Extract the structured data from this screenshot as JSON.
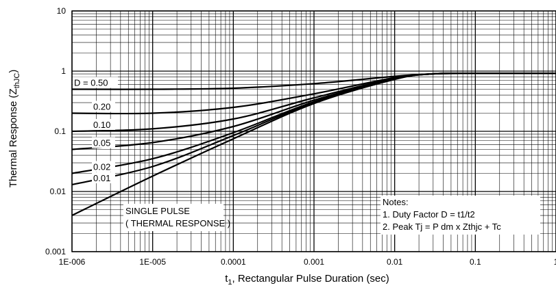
{
  "chart_data": {
    "type": "line",
    "title": "",
    "xlabel_main": "t",
    "xlabel_sub": "1",
    "xlabel_rest": ", Rectangular Pulse Duration (sec)",
    "ylabel_main": "Thermal Response (Z",
    "ylabel_sub": "thJC",
    "ylabel_end": ")",
    "x_scale": "log",
    "y_scale": "log",
    "xlim": [
      1e-06,
      1
    ],
    "ylim": [
      0.001,
      10
    ],
    "grid": true,
    "x_ticks": [
      {
        "value": 1e-06,
        "label": "1E-006"
      },
      {
        "value": 1e-05,
        "label": "1E-005"
      },
      {
        "value": 0.0001,
        "label": "0.0001"
      },
      {
        "value": 0.001,
        "label": "0.001"
      },
      {
        "value": 0.01,
        "label": "0.01"
      },
      {
        "value": 0.1,
        "label": "0.1"
      },
      {
        "value": 1,
        "label": "1"
      }
    ],
    "y_ticks": [
      {
        "value": 0.001,
        "label": "0.001"
      },
      {
        "value": 0.01,
        "label": "0.01"
      },
      {
        "value": 0.1,
        "label": "0.1"
      },
      {
        "value": 1,
        "label": "1"
      },
      {
        "value": 10,
        "label": "10"
      }
    ],
    "series": [
      {
        "name": "D = 0.50",
        "x": [
          1e-06,
          1e-05,
          0.0001,
          0.001,
          0.01,
          0.03,
          0.1,
          1
        ],
        "y": [
          0.5,
          0.5,
          0.52,
          0.62,
          0.82,
          0.9,
          0.92,
          0.92
        ]
      },
      {
        "name": "0.20",
        "x": [
          1e-06,
          1e-05,
          0.0001,
          0.001,
          0.01,
          0.03,
          0.1,
          1
        ],
        "y": [
          0.2,
          0.2,
          0.25,
          0.42,
          0.78,
          0.9,
          0.92,
          0.92
        ]
      },
      {
        "name": "0.10",
        "x": [
          1e-06,
          1e-05,
          0.0001,
          0.001,
          0.01,
          0.03,
          0.1,
          1
        ],
        "y": [
          0.1,
          0.11,
          0.16,
          0.36,
          0.76,
          0.9,
          0.92,
          0.92
        ]
      },
      {
        "name": "0.05",
        "x": [
          1e-06,
          1e-05,
          0.0001,
          0.001,
          0.01,
          0.03,
          0.1,
          1
        ],
        "y": [
          0.05,
          0.065,
          0.12,
          0.33,
          0.75,
          0.9,
          0.92,
          0.92
        ]
      },
      {
        "name": "0.02",
        "x": [
          1e-06,
          1e-05,
          0.0001,
          0.001,
          0.01,
          0.03,
          0.1,
          1
        ],
        "y": [
          0.02,
          0.035,
          0.095,
          0.31,
          0.74,
          0.9,
          0.92,
          0.92
        ]
      },
      {
        "name": "0.01",
        "x": [
          1e-06,
          1e-05,
          0.0001,
          0.001,
          0.01,
          0.03,
          0.1,
          1
        ],
        "y": [
          0.013,
          0.026,
          0.085,
          0.3,
          0.74,
          0.9,
          0.92,
          0.92
        ]
      },
      {
        "name": "SINGLE PULSE",
        "x": [
          1e-06,
          1e-05,
          0.0001,
          0.001,
          0.01,
          0.03,
          0.1,
          1
        ],
        "y": [
          0.004,
          0.018,
          0.075,
          0.29,
          0.73,
          0.9,
          0.92,
          0.92
        ]
      }
    ],
    "annotations": {
      "single_pulse_line1": "SINGLE PULSE",
      "single_pulse_line2": "( THERMAL RESPONSE )",
      "notes_title": "Notes:",
      "note1": "1. Duty Factor D = t1/t2",
      "note2": "2. Peak Tj = P dm x Zthjc + Tc"
    }
  }
}
